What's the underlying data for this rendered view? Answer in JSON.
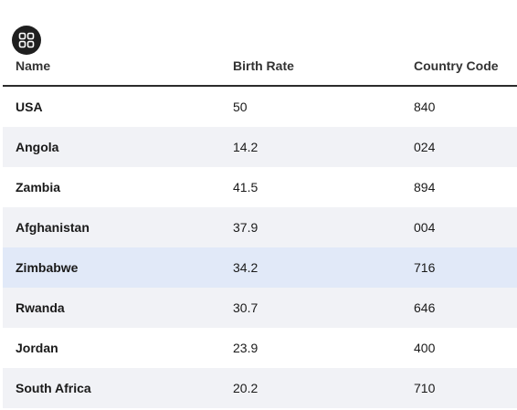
{
  "toolbar": {
    "grid_icon": "grid-layout-icon"
  },
  "table": {
    "headers": [
      "Name",
      "Birth Rate",
      "Country Code"
    ],
    "rows": [
      {
        "name": "USA",
        "birth_rate": "50",
        "country_code": "840"
      },
      {
        "name": "Angola",
        "birth_rate": "14.2",
        "country_code": "024"
      },
      {
        "name": "Zambia",
        "birth_rate": "41.5",
        "country_code": "894"
      },
      {
        "name": "Afghanistan",
        "birth_rate": "37.9",
        "country_code": "004"
      },
      {
        "name": "Zimbabwe",
        "birth_rate": "34.2",
        "country_code": "716"
      },
      {
        "name": "Rwanda",
        "birth_rate": "30.7",
        "country_code": "646"
      },
      {
        "name": "Jordan",
        "birth_rate": "23.9",
        "country_code": "400"
      },
      {
        "name": "South Africa",
        "birth_rate": "20.2",
        "country_code": "710"
      }
    ],
    "selected_row_index": 4
  },
  "colors": {
    "header_rule": "#2b2b2b",
    "alt_row": "#f1f2f6",
    "selected_row": "#e1e9f8",
    "icon_button": "#1f1f1f"
  }
}
